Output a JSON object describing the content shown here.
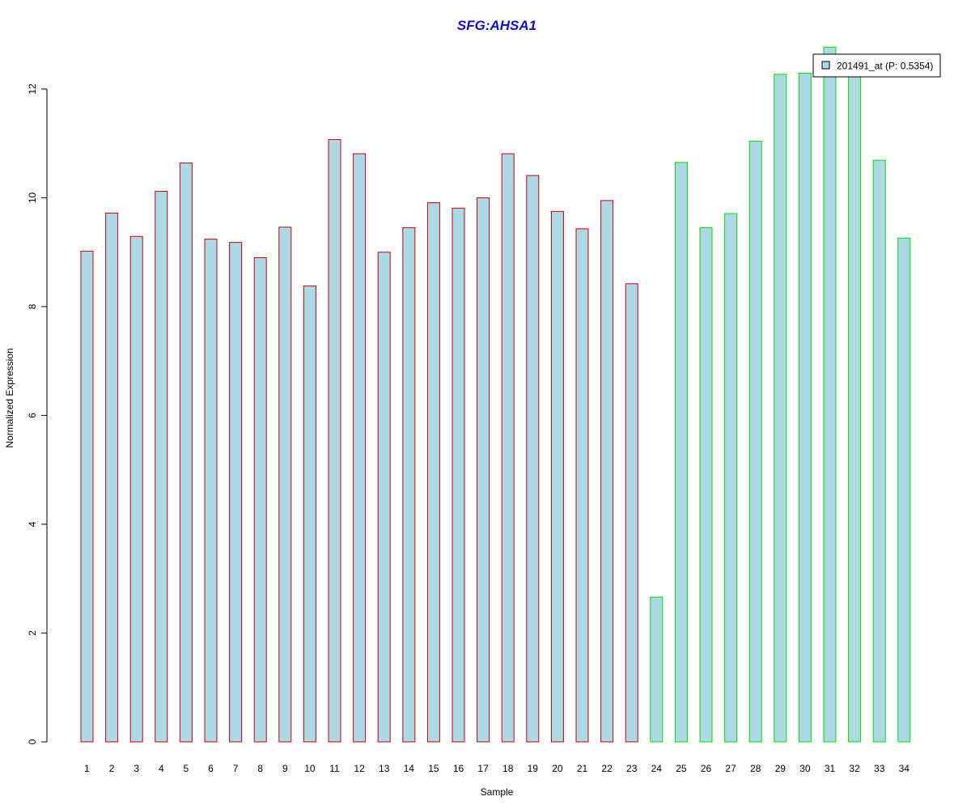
{
  "chart_data": {
    "type": "bar",
    "title": "SFG:AHSA1",
    "xlabel": "Sample",
    "ylabel": "Normalized Expression",
    "categories": [
      "1",
      "2",
      "3",
      "4",
      "5",
      "6",
      "7",
      "8",
      "9",
      "10",
      "11",
      "12",
      "13",
      "14",
      "15",
      "16",
      "17",
      "18",
      "19",
      "20",
      "21",
      "22",
      "23",
      "24",
      "25",
      "26",
      "27",
      "28",
      "29",
      "30",
      "31",
      "32",
      "33",
      "34"
    ],
    "series": [
      {
        "name": "201491_at (P: 0.5354)",
        "values": [
          9.02,
          9.72,
          9.29,
          10.12,
          10.64,
          9.24,
          9.18,
          8.9,
          9.46,
          8.38,
          11.07,
          10.81,
          9.0,
          9.45,
          9.91,
          9.81,
          10.0,
          10.81,
          10.41,
          9.75,
          9.43,
          9.95,
          8.42,
          2.66,
          10.65,
          9.45,
          9.71,
          11.04,
          12.27,
          12.29,
          12.77,
          12.25,
          10.69,
          9.26
        ],
        "groups": [
          "red",
          "red",
          "red",
          "red",
          "red",
          "red",
          "red",
          "red",
          "red",
          "red",
          "red",
          "red",
          "red",
          "red",
          "red",
          "red",
          "red",
          "red",
          "red",
          "red",
          "red",
          "red",
          "red",
          "green",
          "green",
          "green",
          "green",
          "green",
          "green",
          "green",
          "green",
          "green",
          "green",
          "green"
        ]
      }
    ],
    "ylim": [
      0,
      12.9
    ],
    "yticks": [
      0,
      2,
      4,
      6,
      8,
      10,
      12
    ],
    "legend": {
      "placement": "top-right",
      "entries": [
        "201491_at (P: 0.5354)"
      ]
    },
    "grid": false,
    "colors": {
      "title": "#1010cc",
      "bar_fill": "#add8e6",
      "group_red_border": "#cc0000",
      "group_green_border": "#00dd00",
      "axis": "#000000"
    }
  }
}
